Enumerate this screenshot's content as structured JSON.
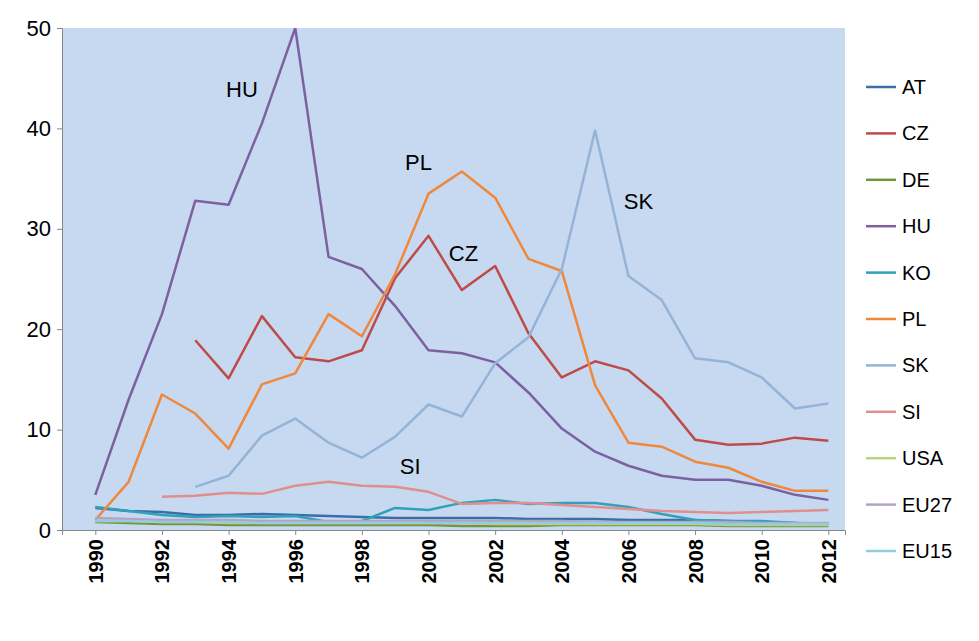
{
  "chart_data": {
    "type": "line",
    "x": [
      1990,
      1991,
      1992,
      1993,
      1994,
      1995,
      1996,
      1997,
      1998,
      1999,
      2000,
      2001,
      2002,
      2003,
      2004,
      2005,
      2006,
      2007,
      2008,
      2009,
      2010,
      2011,
      2012
    ],
    "xlim": [
      1989,
      2012.5
    ],
    "xticks": [
      1990,
      1992,
      1994,
      1996,
      1998,
      2000,
      2002,
      2004,
      2006,
      2008,
      2010,
      2012
    ],
    "ylim": [
      0,
      50
    ],
    "yticks": [
      0,
      10,
      20,
      30,
      40,
      50
    ],
    "grid": false,
    "legend": "right",
    "series": [
      {
        "name": "AT",
        "color": "#3a6ea5",
        "values": [
          2.2,
          1.9,
          1.8,
          1.5,
          1.5,
          1.6,
          1.5,
          1.4,
          1.3,
          1.2,
          1.2,
          1.2,
          1.2,
          1.1,
          1.1,
          1.1,
          1.0,
          1.0,
          1.0,
          0.9,
          0.8,
          0.7,
          0.6
        ]
      },
      {
        "name": "CZ",
        "color": "#be4b48",
        "values": [
          null,
          null,
          null,
          18.9,
          15.1,
          21.3,
          17.2,
          16.8,
          17.9,
          25.1,
          29.3,
          23.9,
          26.3,
          19.6,
          15.2,
          16.8,
          15.9,
          13.1,
          9.0,
          8.5,
          8.6,
          9.2,
          8.9
        ]
      },
      {
        "name": "DE",
        "color": "#77933c",
        "values": [
          0.8,
          0.7,
          0.6,
          0.6,
          0.5,
          0.5,
          0.5,
          0.5,
          0.5,
          0.5,
          0.5,
          0.4,
          0.4,
          0.4,
          0.5,
          0.5,
          0.5,
          0.5,
          0.5,
          0.4,
          0.4,
          0.4,
          0.4
        ]
      },
      {
        "name": "HU",
        "color": "#7d60a0",
        "values": [
          3.5,
          13.0,
          21.5,
          32.8,
          32.4,
          40.5,
          50.0,
          27.2,
          26.0,
          22.3,
          17.9,
          17.6,
          16.7,
          13.7,
          10.1,
          7.8,
          6.4,
          5.4,
          5.0,
          5.0,
          4.4,
          3.5,
          3.0
        ]
      },
      {
        "name": "KO",
        "color": "#31a0b8",
        "values": [
          2.3,
          1.9,
          1.5,
          1.3,
          1.4,
          1.3,
          1.4,
          0.8,
          0.9,
          2.2,
          2.0,
          2.7,
          3.0,
          2.6,
          2.7,
          2.7,
          2.3,
          1.6,
          1.0,
          0.9,
          0.9,
          0.7,
          0.6
        ]
      },
      {
        "name": "PL",
        "color": "#f0883c",
        "values": [
          1.0,
          4.8,
          13.5,
          11.6,
          8.1,
          14.5,
          15.6,
          21.5,
          19.3,
          25.5,
          33.5,
          35.7,
          33.1,
          27.0,
          25.8,
          14.4,
          8.7,
          8.3,
          6.8,
          6.2,
          4.8,
          3.9,
          3.9
        ]
      },
      {
        "name": "SK",
        "color": "#95b3d7",
        "values": [
          null,
          null,
          null,
          4.3,
          5.4,
          9.4,
          11.1,
          8.7,
          7.2,
          9.3,
          12.5,
          11.3,
          16.6,
          19.2,
          26.0,
          39.8,
          25.3,
          22.9,
          17.1,
          16.7,
          15.2,
          12.1,
          12.6
        ]
      },
      {
        "name": "SI",
        "color": "#e08f8d",
        "values": [
          null,
          null,
          3.3,
          3.4,
          3.7,
          3.6,
          4.4,
          4.8,
          4.4,
          4.3,
          3.8,
          2.6,
          2.7,
          2.7,
          2.5,
          2.3,
          2.1,
          1.9,
          1.8,
          1.7,
          1.8,
          1.9,
          2.0
        ]
      },
      {
        "name": "USA",
        "color": "#b7d27c",
        "values": [
          0.9,
          0.9,
          0.8,
          0.8,
          0.7,
          0.7,
          0.7,
          0.7,
          0.7,
          0.7,
          0.7,
          0.7,
          0.6,
          0.6,
          0.6,
          0.6,
          0.6,
          0.6,
          0.6,
          0.5,
          0.5,
          0.5,
          0.5
        ]
      },
      {
        "name": "EU27",
        "color": "#b3a2c7",
        "values": [
          1.2,
          1.1,
          1.0,
          1.0,
          1.0,
          0.9,
          0.9,
          0.9,
          0.9,
          0.9,
          0.9,
          0.9,
          0.9,
          0.9,
          0.9,
          0.8,
          0.8,
          0.8,
          0.8,
          0.8,
          0.7,
          0.7,
          0.7
        ]
      },
      {
        "name": "EU15",
        "color": "#93cddd",
        "values": [
          0.9,
          0.9,
          0.8,
          0.8,
          0.8,
          0.7,
          0.7,
          0.7,
          0.7,
          0.7,
          0.7,
          0.7,
          0.7,
          0.7,
          0.7,
          0.7,
          0.7,
          0.7,
          0.7,
          0.6,
          0.6,
          0.6,
          0.6
        ]
      }
    ],
    "annotations": [
      {
        "text": "HU",
        "x": 1994.4,
        "y": 43.7
      },
      {
        "text": "PL",
        "x": 1999.7,
        "y": 36.4
      },
      {
        "text": "CZ",
        "x": 2001.05,
        "y": 27.4
      },
      {
        "text": "SK",
        "x": 2006.3,
        "y": 32.6
      },
      {
        "text": "SI",
        "x": 1999.45,
        "y": 6.2
      }
    ]
  }
}
